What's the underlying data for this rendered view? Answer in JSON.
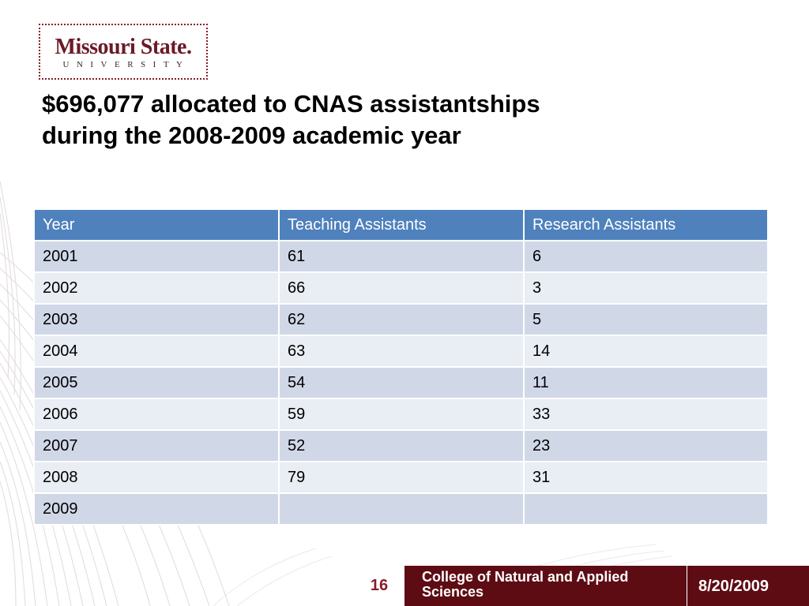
{
  "logo": {
    "name": "Missouri State.",
    "subtitle": "UNIVERSITY"
  },
  "title": {
    "line1": "$696,077 allocated to CNAS assistantships",
    "line2": "during the 2008-2009 academic year"
  },
  "table": {
    "headers": [
      "Year",
      "Teaching Assistants",
      "Research Assistants"
    ],
    "rows": [
      [
        "2001",
        "61",
        "6"
      ],
      [
        "2002",
        "66",
        "3"
      ],
      [
        "2003",
        "62",
        "5"
      ],
      [
        "2004",
        "63",
        "14"
      ],
      [
        "2005",
        "54",
        "11"
      ],
      [
        "2006",
        "59",
        "33"
      ],
      [
        "2007",
        "52",
        "23"
      ],
      [
        "2008",
        "79",
        "31"
      ],
      [
        "2009",
        "",
        ""
      ]
    ]
  },
  "footer": {
    "page_number": "16",
    "college": "College of Natural and Applied Sciences",
    "date": "8/20/2009"
  },
  "colors": {
    "header_blue": "#4f81bd",
    "row_dark": "#d0d8e8",
    "row_light": "#e9edf4",
    "maroon": "#5e0c14",
    "page_number": "#8a1c2a"
  }
}
